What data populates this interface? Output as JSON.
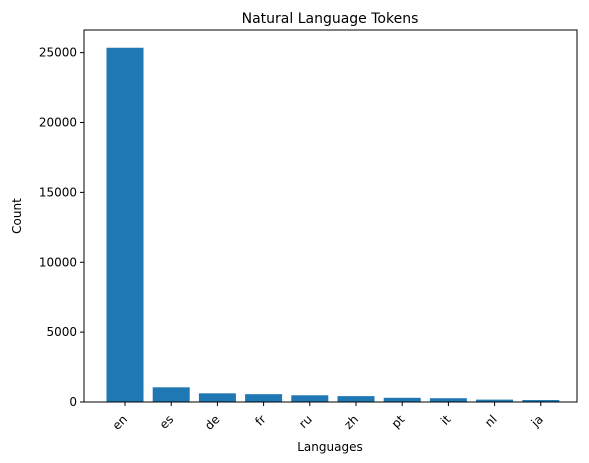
{
  "chart_data": {
    "type": "bar",
    "title": "Natural Language Tokens",
    "xlabel": "Languages",
    "ylabel": "Count",
    "categories": [
      "en",
      "es",
      "de",
      "fr",
      "ru",
      "zh",
      "pt",
      "it",
      "nl",
      "ja"
    ],
    "values": [
      25350,
      1050,
      620,
      560,
      480,
      420,
      300,
      270,
      170,
      140
    ],
    "ylim": [
      0,
      26620
    ],
    "yticks": [
      0,
      5000,
      10000,
      15000,
      20000,
      25000
    ],
    "x_tick_rotation_deg": 45,
    "bar_color": "#1f77b4",
    "grid": false,
    "legend": "none"
  }
}
